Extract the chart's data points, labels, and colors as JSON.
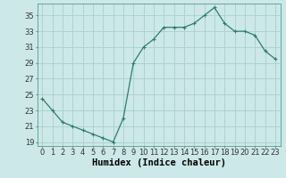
{
  "x": [
    0,
    1,
    2,
    3,
    4,
    5,
    6,
    7,
    8,
    9,
    10,
    11,
    12,
    13,
    14,
    15,
    16,
    17,
    18,
    19,
    20,
    21,
    22,
    23
  ],
  "y": [
    24.5,
    23.0,
    21.5,
    21.0,
    20.5,
    20.0,
    19.5,
    19.0,
    22.0,
    29.0,
    31.0,
    32.0,
    33.5,
    33.5,
    33.5,
    34.0,
    35.0,
    36.0,
    34.0,
    33.0,
    33.0,
    32.5,
    30.5,
    29.5
  ],
  "line_color": "#2e7d6e",
  "marker": "P",
  "marker_size": 2.5,
  "bg_color": "#cce8e8",
  "grid_color": "#aacece",
  "xlabel": "Humidex (Indice chaleur)",
  "xlim": [
    -0.5,
    23.5
  ],
  "ylim": [
    18.5,
    36.5
  ],
  "yticks": [
    19,
    21,
    23,
    25,
    27,
    29,
    31,
    33,
    35
  ],
  "xticks": [
    0,
    1,
    2,
    3,
    4,
    5,
    6,
    7,
    8,
    9,
    10,
    11,
    12,
    13,
    14,
    15,
    16,
    17,
    18,
    19,
    20,
    21,
    22,
    23
  ],
  "tick_fontsize": 6,
  "label_fontsize": 7.5
}
